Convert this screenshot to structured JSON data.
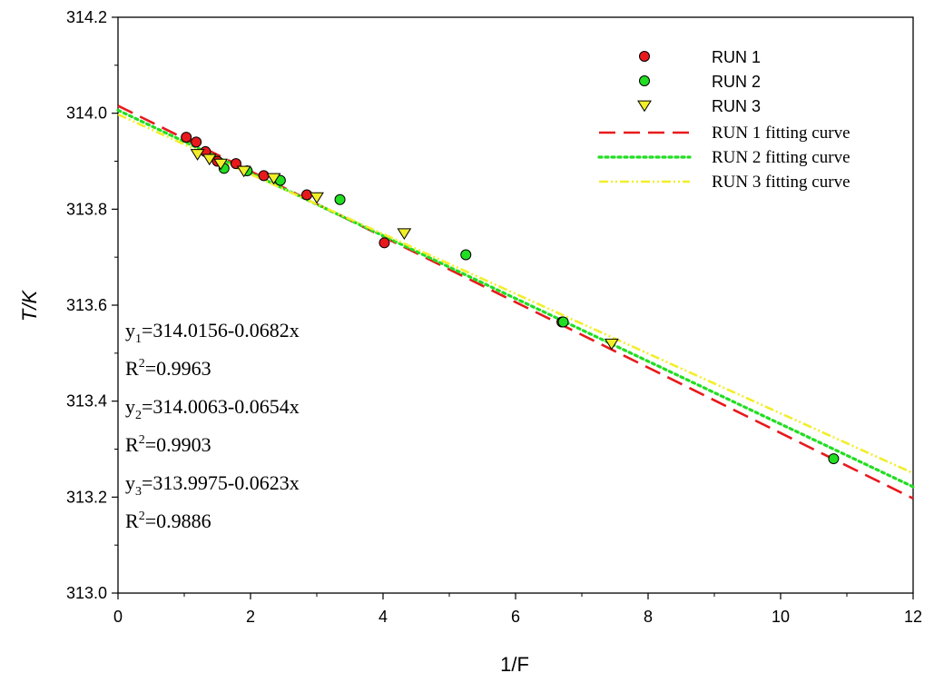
{
  "chart_data": {
    "type": "scatter",
    "xlabel": "1/F",
    "ylabel": "T/K",
    "xlim": [
      0,
      12
    ],
    "ylim": [
      313.0,
      314.2
    ],
    "x_ticks": [
      "0",
      "2",
      "4",
      "6",
      "8",
      "10",
      "12"
    ],
    "y_ticks": [
      "313.0",
      "313.2",
      "313.4",
      "313.6",
      "313.8",
      "314.0",
      "314.2"
    ],
    "grid": false,
    "legend_position": "top-right",
    "series": [
      {
        "name": "RUN 1",
        "marker": "circle",
        "color": "#e8191c",
        "points": [
          [
            1.03,
            313.95
          ],
          [
            1.18,
            313.94
          ],
          [
            1.32,
            313.92
          ],
          [
            1.5,
            313.9
          ],
          [
            1.78,
            313.895
          ],
          [
            2.2,
            313.87
          ],
          [
            2.85,
            313.83
          ],
          [
            4.02,
            313.73
          ],
          [
            6.7,
            313.565
          ]
        ]
      },
      {
        "name": "RUN 2",
        "marker": "circle",
        "color": "#22dd22",
        "points": [
          [
            1.6,
            313.885
          ],
          [
            1.95,
            313.88
          ],
          [
            2.45,
            313.86
          ],
          [
            3.35,
            313.82
          ],
          [
            5.25,
            313.705
          ],
          [
            6.72,
            313.565
          ],
          [
            10.8,
            313.28
          ]
        ]
      },
      {
        "name": "RUN 3",
        "marker": "triangle-down",
        "color": "#f2ee2a",
        "points": [
          [
            1.2,
            313.915
          ],
          [
            1.38,
            313.905
          ],
          [
            1.55,
            313.895
          ],
          [
            1.9,
            313.88
          ],
          [
            2.35,
            313.865
          ],
          [
            3.0,
            313.825
          ],
          [
            4.32,
            313.75
          ],
          [
            7.45,
            313.52
          ]
        ]
      }
    ],
    "fits": [
      {
        "name": "RUN 1 fitting curve",
        "intercept": 314.0156,
        "slope": -0.0682,
        "color": "#e8191c",
        "dash": "long-dash"
      },
      {
        "name": "RUN 2 fitting curve",
        "intercept": 314.0063,
        "slope": -0.0654,
        "color": "#22dd22",
        "dash": "dotted"
      },
      {
        "name": "RUN 3 fitting curve",
        "intercept": 313.9975,
        "slope": -0.0623,
        "color": "#f2ee2a",
        "dash": "dash-dot-dot"
      }
    ],
    "annotations": [
      {
        "prefix": "y",
        "sub": "1",
        "rest": "=314.0156-0.0682x"
      },
      {
        "prefix": "R",
        "sup": "2",
        "rest": "=0.9963"
      },
      {
        "prefix": "y",
        "sub": "2",
        "rest": "=314.0063-0.0654x"
      },
      {
        "prefix": "R",
        "sup": "2",
        "rest": "=0.9903"
      },
      {
        "prefix": "y",
        "sub": "3",
        "rest": "=313.9975-0.0623x"
      },
      {
        "prefix": "R",
        "sup": "2",
        "rest": "=0.9886"
      }
    ]
  }
}
